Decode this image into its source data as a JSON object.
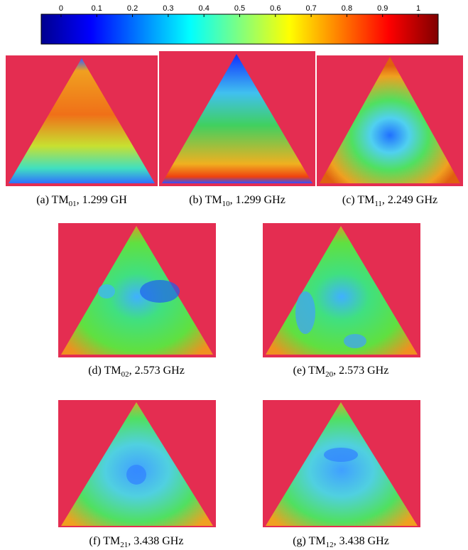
{
  "colorbar": {
    "lim": [
      0,
      1
    ],
    "ticks": [
      0,
      0.1,
      0.2,
      0.3,
      0.4,
      0.5,
      0.6,
      0.7,
      0.8,
      0.9,
      1
    ]
  },
  "panels": [
    {
      "label": "(a) TM",
      "sub": "01",
      "rest": ", 1.299 GH"
    },
    {
      "label": "(b) TM",
      "sub": "10",
      "rest": ", 1.299 GHz"
    },
    {
      "label": "(c) TM",
      "sub": "11",
      "rest": ", 2.249 GHz"
    },
    {
      "label": "(d) TM",
      "sub": "02",
      "rest": ", 2.573 GHz"
    },
    {
      "label": "(e) TM",
      "sub": "20",
      "rest": ", 2.573 GHz"
    },
    {
      "label": "(f) TM",
      "sub": "21",
      "rest": ", 3.438 GHz"
    },
    {
      "label": "(g) TM",
      "sub": "12",
      "rest": ", 3.438 GHz"
    }
  ]
}
